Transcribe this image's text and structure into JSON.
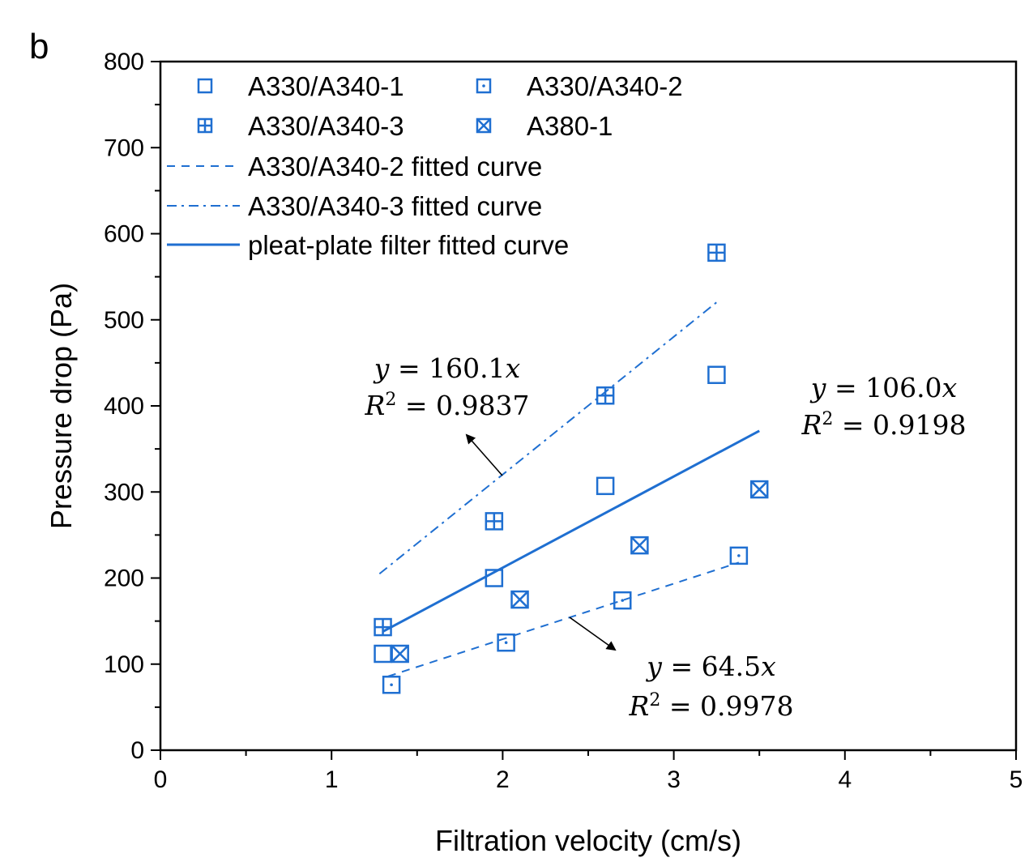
{
  "chart_data": {
    "type": "scatter",
    "panel_label": "b",
    "xlabel": "Filtration velocity (cm/s)",
    "ylabel": "Pressure drop (Pa)",
    "xlim": [
      0,
      5
    ],
    "ylim": [
      0,
      800
    ],
    "x_ticks": [
      "0",
      "1",
      "2",
      "3",
      "4",
      "5"
    ],
    "y_ticks": [
      "0",
      "100",
      "200",
      "300",
      "400",
      "500",
      "600",
      "700",
      "800"
    ],
    "accent_color": "#1f6fd1",
    "series": [
      {
        "name": "A330/A340-1",
        "marker": "square",
        "points": [
          [
            1.3,
            112
          ],
          [
            1.95,
            200
          ],
          [
            2.6,
            307
          ],
          [
            3.25,
            436
          ]
        ]
      },
      {
        "name": "A330/A340-2",
        "marker": "square-dot",
        "points": [
          [
            1.35,
            76
          ],
          [
            2.02,
            125
          ],
          [
            2.7,
            174
          ],
          [
            3.38,
            226
          ]
        ]
      },
      {
        "name": "A330/A340-3",
        "marker": "square-plus",
        "points": [
          [
            1.3,
            143
          ],
          [
            1.95,
            266
          ],
          [
            2.6,
            412
          ],
          [
            3.25,
            578
          ]
        ]
      },
      {
        "name": "A380-1",
        "marker": "square-x",
        "points": [
          [
            1.4,
            112
          ],
          [
            2.1,
            175
          ],
          [
            2.8,
            238
          ],
          [
            3.5,
            303
          ]
        ]
      }
    ],
    "fits": [
      {
        "name": "A330/A340-2 fitted curve",
        "style": "dashed",
        "slope": 64.5,
        "x_range": [
          1.33,
          3.38
        ]
      },
      {
        "name": "A330/A340-3 fitted curve",
        "style": "dash-dot",
        "slope": 160.1,
        "x_range": [
          1.28,
          3.25
        ]
      },
      {
        "name": "pleat-plate filter fitted curve",
        "style": "solid",
        "slope": 106.0,
        "x_range": [
          1.3,
          3.5
        ]
      }
    ],
    "annotations": [
      {
        "eq": "y = 160.1x",
        "r2": "0.9837"
      },
      {
        "eq": "y = 106.0x",
        "r2": "0.9198"
      },
      {
        "eq": "y = 64.5x",
        "r2": "0.9978"
      }
    ],
    "legend": {
      "position": "top-left",
      "entries": [
        "A330/A340-1",
        "A330/A340-2",
        "A330/A340-3",
        "A380-1",
        "A330/A340-2 fitted curve",
        "A330/A340-3 fitted curve",
        "pleat-plate filter fitted curve"
      ]
    }
  }
}
